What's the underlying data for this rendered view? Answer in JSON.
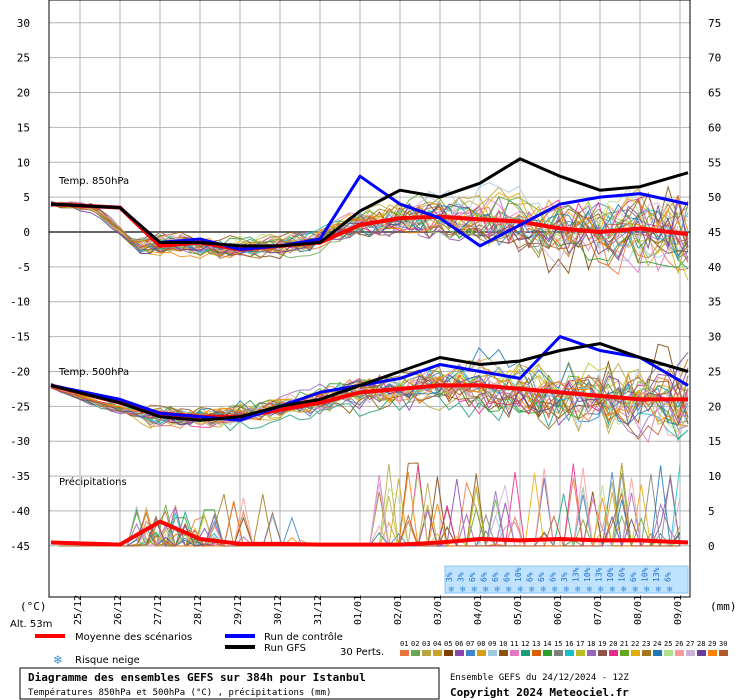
{
  "chart_data": {
    "type": "line",
    "title": "Diagramme des ensembles GEFS sur 384h pour Istanbul",
    "subtitle": "Températures 850hPa et 500hPa (°C) , précipitations (mm)",
    "run_label": "Ensemble GEFS du 24/12/2024 - 12Z",
    "copyright": "Copyright 2024 Meteociel.fr",
    "altitude": "Alt. 53m",
    "y_left_unit": "(°C)",
    "y_right_unit": "(mm)",
    "y_left_ticks": [
      "30",
      "25",
      "20",
      "15",
      "10",
      "5",
      "0",
      "-5",
      "-10",
      "-15",
      "-20",
      "-25",
      "-30",
      "-35",
      "-40",
      "-45"
    ],
    "y_right_ticks": [
      "75",
      "70",
      "65",
      "60",
      "55",
      "50",
      "45",
      "40",
      "35",
      "30",
      "25",
      "20",
      "15",
      "10",
      "5",
      "0"
    ],
    "ylim_left": [
      -45,
      30
    ],
    "ylim_right": [
      0,
      75
    ],
    "x_ticks": [
      "25/12",
      "26/12",
      "27/12",
      "28/12",
      "29/12",
      "30/12",
      "31/12",
      "01/01",
      "02/01",
      "03/01",
      "04/01",
      "05/01",
      "06/01",
      "07/01",
      "08/01",
      "09/01"
    ],
    "grid": true,
    "section_labels": {
      "t850": "Temp. 850hPa",
      "t500": "Temp. 500hPa",
      "precip": "Précipitations"
    },
    "legend": {
      "mean": "Moyenne des scénarios",
      "control": "Run de contrôle",
      "gfs": "Run GFS",
      "snow": "Risque neige",
      "perts": "30 Perts.",
      "members": [
        "01",
        "02",
        "03",
        "04",
        "05",
        "06",
        "07",
        "08",
        "09",
        "10",
        "11",
        "12",
        "13",
        "14",
        "15",
        "16",
        "17",
        "18",
        "19",
        "20",
        "21",
        "22",
        "23",
        "24",
        "25",
        "26",
        "27",
        "28",
        "29",
        "30"
      ],
      "member_colors": [
        "#e8743b",
        "#6aa84f",
        "#b5a642",
        "#c9a227",
        "#7b3f00",
        "#8e44ad",
        "#3d85c6",
        "#d4a017",
        "#9ecae1",
        "#8c510a",
        "#e377c2",
        "#1b9e77",
        "#d95f02",
        "#2ca02c",
        "#7f7f7f",
        "#17becf",
        "#bcbd22",
        "#9467bd",
        "#8c564b",
        "#e7298a",
        "#66a61e",
        "#e6ab02",
        "#a6761d",
        "#1f78b4",
        "#b2df8a",
        "#fb9a99",
        "#cab2d6",
        "#6a3d9a",
        "#ff7f00",
        "#b15928"
      ]
    },
    "snow_risk_percent": [
      "3%",
      "3%",
      "6%",
      "6%",
      "6%",
      "6%",
      "10%",
      "6%",
      "6%",
      "6%",
      "3%",
      "13%",
      "10%",
      "13%",
      "10%",
      "16%",
      "6%",
      "10%",
      "13%",
      "6%"
    ],
    "series": [
      {
        "name": "Moyenne des scénarios",
        "role": "t850",
        "color": "#ff0000",
        "x": [
          "25/12",
          "26/12",
          "27/12",
          "28/12",
          "29/12",
          "30/12",
          "31/12",
          "01/01",
          "02/01",
          "03/01",
          "04/01",
          "05/01",
          "06/01",
          "07/01",
          "08/01",
          "09/01"
        ],
        "y": [
          4,
          3.5,
          -2,
          -1.5,
          -2.5,
          -2,
          -1.5,
          1,
          2,
          2.2,
          1.8,
          1.5,
          0.5,
          0,
          0.5,
          -0.3
        ]
      },
      {
        "name": "Run de contrôle",
        "role": "t850",
        "color": "#0000ff",
        "x": [
          "25/12",
          "26/12",
          "27/12",
          "28/12",
          "29/12",
          "30/12",
          "31/12",
          "01/01",
          "02/01",
          "03/01",
          "04/01",
          "05/01",
          "06/01",
          "07/01",
          "08/01",
          "09/01"
        ],
        "y": [
          4,
          3.5,
          -1.5,
          -1,
          -2.5,
          -2,
          -1,
          8,
          4,
          2,
          -2,
          1,
          4,
          5,
          5.5,
          4
        ]
      },
      {
        "name": "Run GFS",
        "role": "t850",
        "color": "#000000",
        "x": [
          "25/12",
          "26/12",
          "27/12",
          "28/12",
          "29/12",
          "30/12",
          "31/12",
          "01/01",
          "02/01",
          "03/01",
          "04/01",
          "05/01",
          "06/01",
          "07/01",
          "08/01",
          "09/01"
        ],
        "y": [
          4,
          3.5,
          -1.5,
          -1.5,
          -2,
          -2,
          -1.5,
          3,
          6,
          5,
          7,
          10.5,
          8,
          6,
          6.5,
          8.5
        ]
      },
      {
        "name": "Moyenne des scénarios",
        "role": "t500",
        "color": "#ff0000",
        "x": [
          "25/12",
          "26/12",
          "27/12",
          "28/12",
          "29/12",
          "30/12",
          "31/12",
          "01/01",
          "02/01",
          "03/01",
          "04/01",
          "05/01",
          "06/01",
          "07/01",
          "08/01",
          "09/01"
        ],
        "y": [
          -22,
          -24.5,
          -26,
          -26.5,
          -26.5,
          -25.5,
          -24.5,
          -23,
          -22.5,
          -22,
          -22,
          -22.5,
          -23,
          -23.5,
          -24,
          -24
        ]
      },
      {
        "name": "Run de contrôle",
        "role": "t500",
        "color": "#0000ff",
        "x": [
          "25/12",
          "26/12",
          "27/12",
          "28/12",
          "29/12",
          "30/12",
          "31/12",
          "01/01",
          "02/01",
          "03/01",
          "04/01",
          "05/01",
          "06/01",
          "07/01",
          "08/01",
          "09/01"
        ],
        "y": [
          -22,
          -24,
          -26,
          -26.5,
          -27,
          -25,
          -23,
          -22,
          -21,
          -19,
          -20,
          -21,
          -15,
          -17,
          -18,
          -22
        ]
      },
      {
        "name": "Run GFS",
        "role": "t500",
        "color": "#000000",
        "x": [
          "25/12",
          "26/12",
          "27/12",
          "28/12",
          "29/12",
          "30/12",
          "31/12",
          "01/01",
          "02/01",
          "03/01",
          "04/01",
          "05/01",
          "06/01",
          "07/01",
          "08/01",
          "09/01"
        ],
        "y": [
          -22,
          -24.5,
          -26.5,
          -27,
          -26.5,
          -25,
          -24,
          -22,
          -20,
          -18,
          -19,
          -18.5,
          -17,
          -16,
          -18,
          -20
        ]
      },
      {
        "name": "Moyenne des scénarios",
        "role": "precip_mm",
        "color": "#ff0000",
        "x": [
          "25/12",
          "26/12",
          "27/12",
          "28/12",
          "29/12",
          "30/12",
          "31/12",
          "01/01",
          "02/01",
          "03/01",
          "04/01",
          "05/01",
          "06/01",
          "07/01",
          "08/01",
          "09/01"
        ],
        "y": [
          0.5,
          0.2,
          3.5,
          1,
          0.3,
          0.3,
          0.2,
          0.2,
          0.2,
          0.5,
          1,
          0.8,
          1,
          0.8,
          0.8,
          0.5
        ]
      }
    ]
  }
}
